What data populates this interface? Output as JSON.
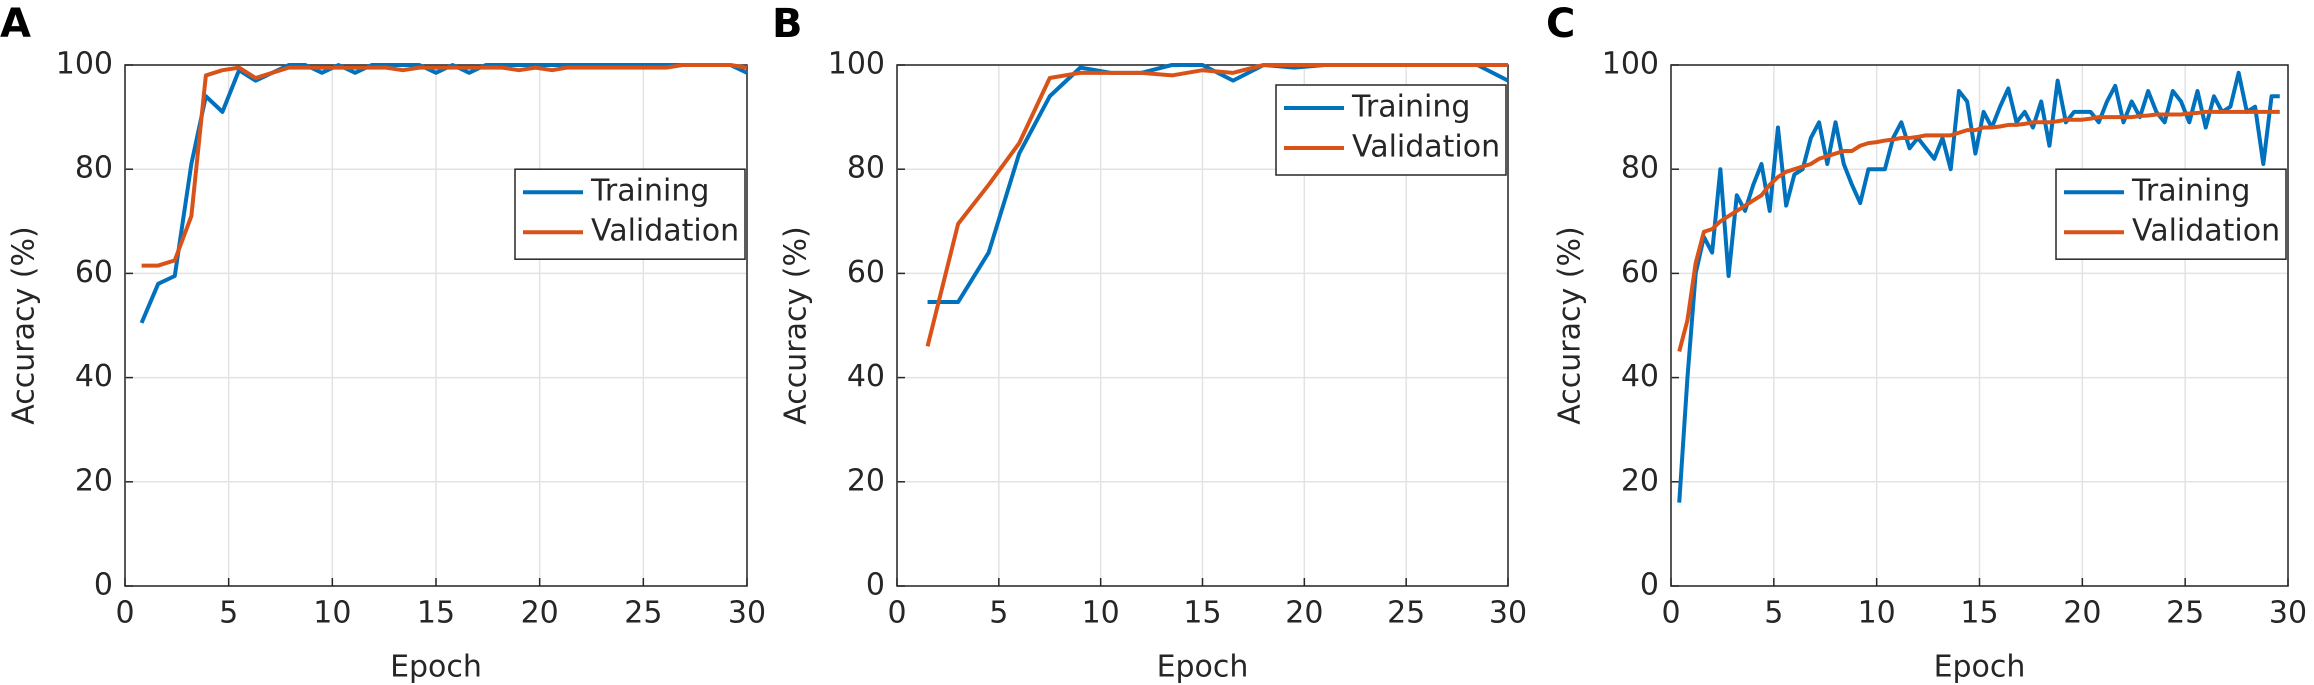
{
  "chart_data": [
    {
      "type": "line",
      "label": "A",
      "xlabel": "Epoch",
      "ylabel": "Accuracy (%)",
      "x": [
        0.8,
        1.6,
        2.4,
        3.2,
        3.9,
        4.7,
        5.5,
        6.3,
        7.1,
        7.9,
        8.7,
        9.5,
        10.3,
        11.1,
        11.9,
        12.6,
        13.4,
        14.2,
        15.0,
        15.8,
        16.6,
        17.4,
        18.2,
        19.0,
        19.8,
        20.6,
        21.3,
        22.1,
        22.9,
        23.7,
        24.5,
        25.3,
        26.1,
        26.9,
        27.7,
        28.5,
        29.2,
        30.0
      ],
      "series": [
        {
          "name": "Training",
          "color": "#0072bd",
          "values": [
            50.5,
            58,
            59.5,
            81,
            94,
            91,
            99,
            97,
            98.5,
            100,
            100,
            98.5,
            100,
            98.5,
            100,
            100,
            100,
            100,
            98.5,
            100,
            98.5,
            100,
            100,
            100,
            100,
            100,
            100,
            100,
            100,
            100,
            100,
            100,
            100,
            100,
            100,
            100,
            100,
            98.5
          ]
        },
        {
          "name": "Validation",
          "color": "#d95319",
          "values": [
            61.5,
            61.5,
            62.5,
            71,
            98,
            99,
            99.5,
            97.5,
            98.5,
            99.5,
            99.5,
            99.5,
            99.5,
            99.5,
            99.5,
            99.5,
            99,
            99.5,
            99.5,
            99.5,
            99.5,
            99.5,
            99.5,
            99,
            99.5,
            99,
            99.5,
            99.5,
            99.5,
            99.5,
            99.5,
            99.5,
            99.5,
            100,
            100,
            100,
            100,
            99.5
          ]
        }
      ],
      "xlim": [
        0,
        30
      ],
      "xticks": [
        0,
        5,
        10,
        15,
        20,
        25,
        30
      ],
      "ylim": [
        0,
        100
      ],
      "yticks": [
        0,
        20,
        40,
        60,
        80,
        100
      ],
      "grid": true,
      "legend_loc": "center right"
    },
    {
      "type": "line",
      "label": "B",
      "xlabel": "Epoch",
      "ylabel": "Accuracy (%)",
      "x": [
        1.5,
        3,
        4.5,
        6,
        7.5,
        9,
        10.5,
        12,
        13.5,
        15,
        16.5,
        18,
        19.5,
        21,
        22.5,
        24,
        25.5,
        27,
        28.5,
        30
      ],
      "series": [
        {
          "name": "Training",
          "color": "#0072bd",
          "values": [
            54.5,
            54.5,
            64,
            83,
            94,
            99.5,
            98.5,
            98.5,
            100,
            100,
            97,
            100,
            99.5,
            100,
            100,
            100,
            100,
            100,
            100,
            97
          ]
        },
        {
          "name": "Validation",
          "color": "#d95319",
          "values": [
            46,
            69.5,
            77,
            85,
            97.5,
            98.5,
            98.5,
            98.5,
            98,
            99,
            98.5,
            100,
            100,
            100,
            100,
            100,
            100,
            100,
            100,
            100
          ]
        }
      ],
      "xlim": [
        0,
        30
      ],
      "xticks": [
        0,
        5,
        10,
        15,
        20,
        25,
        30
      ],
      "ylim": [
        0,
        100
      ],
      "yticks": [
        0,
        20,
        40,
        60,
        80,
        100
      ],
      "grid": true,
      "legend_loc": "upper right"
    },
    {
      "type": "line",
      "label": "C",
      "xlabel": "Epoch",
      "ylabel": "Accuracy (%)",
      "x": [
        0.4,
        0.8,
        1.2,
        1.6,
        2.0,
        2.4,
        2.8,
        3.2,
        3.6,
        4.0,
        4.4,
        4.8,
        5.2,
        5.6,
        6.0,
        6.4,
        6.8,
        7.2,
        7.6,
        8.0,
        8.4,
        8.8,
        9.2,
        9.6,
        10.0,
        10.4,
        10.8,
        11.2,
        11.6,
        12.0,
        12.4,
        12.8,
        13.2,
        13.6,
        14.0,
        14.4,
        14.8,
        15.2,
        15.6,
        16.0,
        16.4,
        16.8,
        17.2,
        17.6,
        18.0,
        18.4,
        18.8,
        19.2,
        19.6,
        20.0,
        20.4,
        20.8,
        21.2,
        21.6,
        22.0,
        22.4,
        22.8,
        23.2,
        23.6,
        24.0,
        24.4,
        24.8,
        25.2,
        25.6,
        26.0,
        26.4,
        26.8,
        27.2,
        27.6,
        28.0,
        28.4,
        28.8,
        29.2,
        29.6
      ],
      "series": [
        {
          "name": "Training",
          "color": "#0072bd",
          "values": [
            16,
            40,
            60,
            67,
            64,
            80,
            59.5,
            75,
            72,
            77,
            81,
            72,
            88,
            73,
            79,
            80,
            86,
            89,
            81,
            89,
            81,
            77,
            73.5,
            80,
            80,
            80,
            86,
            89,
            84,
            86,
            84,
            82,
            86,
            80,
            95,
            93,
            83,
            91,
            88,
            92,
            95.5,
            89,
            91,
            88,
            93,
            84.5,
            97,
            89,
            91,
            91,
            91,
            89,
            93,
            96,
            89,
            93,
            90,
            95,
            91,
            89,
            95,
            93,
            89,
            95,
            88,
            94,
            91,
            92,
            98.5,
            91,
            92,
            81,
            94,
            94
          ]
        },
        {
          "name": "Validation",
          "color": "#d95319",
          "values": [
            45,
            51,
            62,
            68,
            68.5,
            70,
            71,
            72,
            73,
            74,
            75,
            77,
            78.5,
            79.5,
            80,
            80.5,
            81,
            82,
            82.5,
            83,
            83.5,
            83.5,
            84.5,
            85,
            85.2,
            85.5,
            85.7,
            86,
            86,
            86.2,
            86.5,
            86.5,
            86.5,
            86.5,
            87,
            87.5,
            87.5,
            88,
            88,
            88.2,
            88.5,
            88.5,
            88.7,
            89,
            89,
            89,
            89.2,
            89.5,
            89.5,
            89.5,
            89.7,
            90,
            90,
            90,
            90,
            90,
            90.2,
            90.3,
            90.5,
            90.5,
            90.5,
            90.5,
            90.7,
            90.8,
            91,
            91,
            91,
            91,
            91,
            91,
            91,
            91,
            91,
            91
          ]
        }
      ],
      "xlim": [
        0,
        30
      ],
      "xticks": [
        0,
        5,
        10,
        15,
        20,
        25,
        30
      ],
      "ylim": [
        0,
        100
      ],
      "yticks": [
        0,
        20,
        40,
        60,
        80,
        100
      ],
      "grid": true,
      "legend_loc": "center right"
    }
  ]
}
